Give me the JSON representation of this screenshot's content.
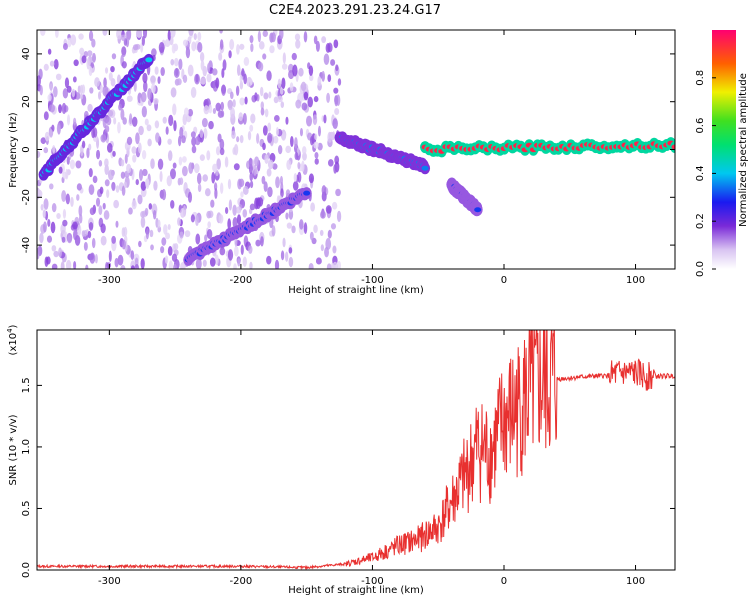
{
  "title": "C2E4.2023.291.23.24.G17",
  "chart_data": [
    {
      "type": "heatmap",
      "xlabel": "Height of straight line (km)",
      "ylabel": "Frequency (Hz)",
      "xlim": [
        -355,
        130
      ],
      "ylim": [
        -50,
        50
      ],
      "xticks": [
        "-300",
        "-200",
        "-100",
        "0",
        "100"
      ],
      "yticks": [
        "-40",
        "-20",
        "0",
        "20",
        "40"
      ],
      "colorbar": {
        "label": "Normalized spectral amplitude",
        "ticks": [
          "0.0",
          "0.2",
          "0.4",
          "0.6",
          "0.8"
        ],
        "range": [
          0,
          1
        ]
      },
      "features": [
        {
          "kind": "rising_track",
          "x": [
            -350,
            -270
          ],
          "y": [
            -10,
            38
          ],
          "amplitude": 0.4
        },
        {
          "kind": "rising_track",
          "x": [
            -240,
            -150
          ],
          "y": [
            -46,
            -18
          ],
          "amplitude": 0.3
        },
        {
          "kind": "main_band",
          "x": [
            -125,
            -60
          ],
          "y": [
            5,
            -7
          ],
          "amplitude": 0.35
        },
        {
          "kind": "main_band",
          "x": [
            -60,
            130
          ],
          "y": [
            0,
            2
          ],
          "amplitude": 0.95
        },
        {
          "kind": "tail",
          "x": [
            -40,
            -20
          ],
          "y": [
            -15,
            -25
          ],
          "amplitude": 0.3
        }
      ]
    },
    {
      "type": "line",
      "xlabel": "Height of straight line (km)",
      "ylabel": "SNR (10 * v/v)",
      "yscale_label": "(x10",
      "yscale_exp": "4",
      "yscale_close": ")",
      "xlim": [
        -355,
        130
      ],
      "ylim": [
        0,
        1.95
      ],
      "xticks": [
        "-300",
        "-200",
        "-100",
        "0",
        "100"
      ],
      "yticks": [
        "0.0",
        "0.5",
        "1.0",
        "1.5"
      ],
      "color": "#e8302f",
      "x": [
        -355,
        -300,
        -250,
        -200,
        -150,
        -120,
        -100,
        -80,
        -65,
        -50,
        -40,
        -30,
        -20,
        -10,
        0,
        10,
        20,
        30,
        40,
        60,
        80,
        90,
        100,
        110,
        130
      ],
      "y": [
        0.03,
        0.03,
        0.03,
        0.03,
        0.02,
        0.05,
        0.1,
        0.2,
        0.25,
        0.35,
        0.55,
        0.75,
        1.0,
        0.95,
        1.2,
        1.3,
        1.45,
        1.5,
        1.55,
        1.57,
        1.58,
        1.6,
        1.6,
        1.57,
        1.58
      ]
    }
  ]
}
